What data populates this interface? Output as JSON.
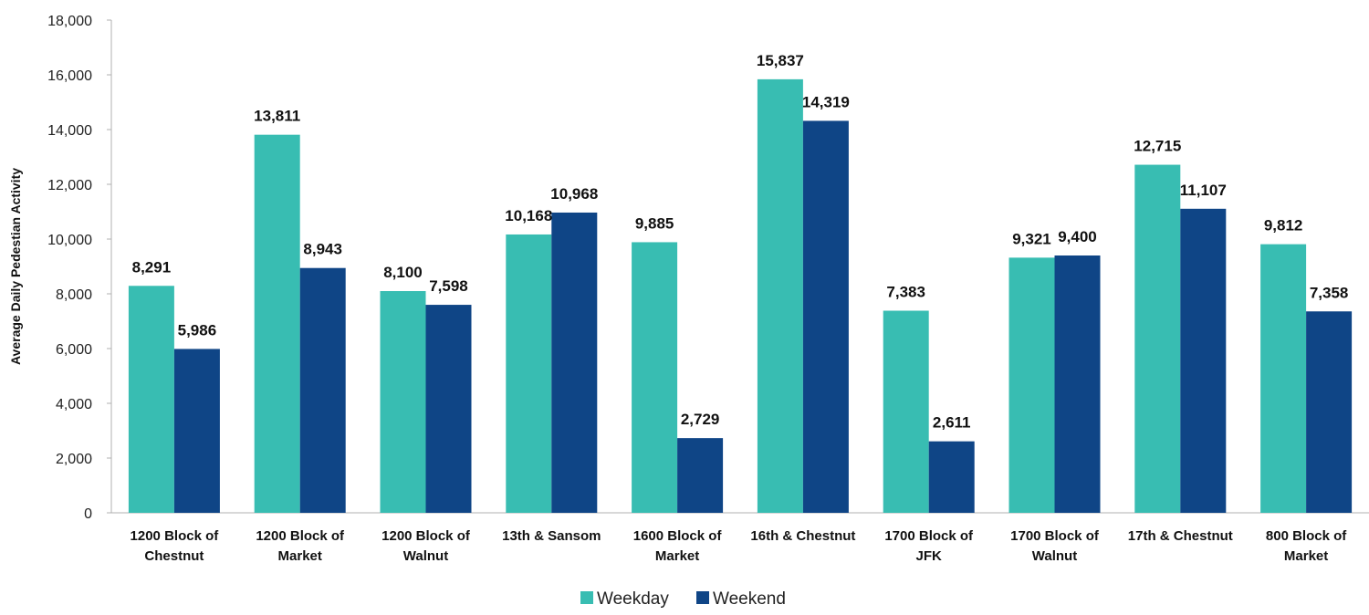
{
  "chart_data": {
    "type": "bar",
    "title": "",
    "xlabel": "",
    "ylabel": "Average Daily Pedestian Activity",
    "ylim": [
      0,
      18000
    ],
    "yticks": [
      "0",
      "2,000",
      "4,000",
      "6,000",
      "8,000",
      "10,000",
      "12,000",
      "14,000",
      "16,000",
      "18,000"
    ],
    "grid": false,
    "legend_position": "bottom-center",
    "categories": [
      [
        "1200 Block of",
        "Chestnut"
      ],
      [
        "1200 Block of",
        "Market"
      ],
      [
        "1200 Block of",
        "Walnut"
      ],
      [
        "13th & Sansom"
      ],
      [
        "1600 Block of",
        "Market"
      ],
      [
        "16th & Chestnut"
      ],
      [
        "1700 Block of",
        "JFK"
      ],
      [
        "1700 Block of",
        "Walnut"
      ],
      [
        "17th & Chestnut"
      ],
      [
        "800 Block of",
        "Market"
      ]
    ],
    "series": [
      {
        "name": "Weekday",
        "color": "#38BDB2",
        "values": [
          8291,
          13811,
          8100,
          10168,
          9885,
          15837,
          7383,
          9321,
          12715,
          9812
        ],
        "labels": [
          "8,291",
          "13,811",
          "8,100",
          "10,168",
          "9,885",
          "15,837",
          "7,383",
          "9,321",
          "12,715",
          "9,812"
        ]
      },
      {
        "name": "Weekend",
        "color": "#0F4586",
        "values": [
          5986,
          8943,
          7598,
          10968,
          2729,
          14319,
          2611,
          9400,
          11107,
          7358
        ],
        "labels": [
          "5,986",
          "8,943",
          "7,598",
          "10,968",
          "2,729",
          "14,319",
          "2,611",
          "9,400",
          "11,107",
          "7,358"
        ]
      }
    ]
  }
}
